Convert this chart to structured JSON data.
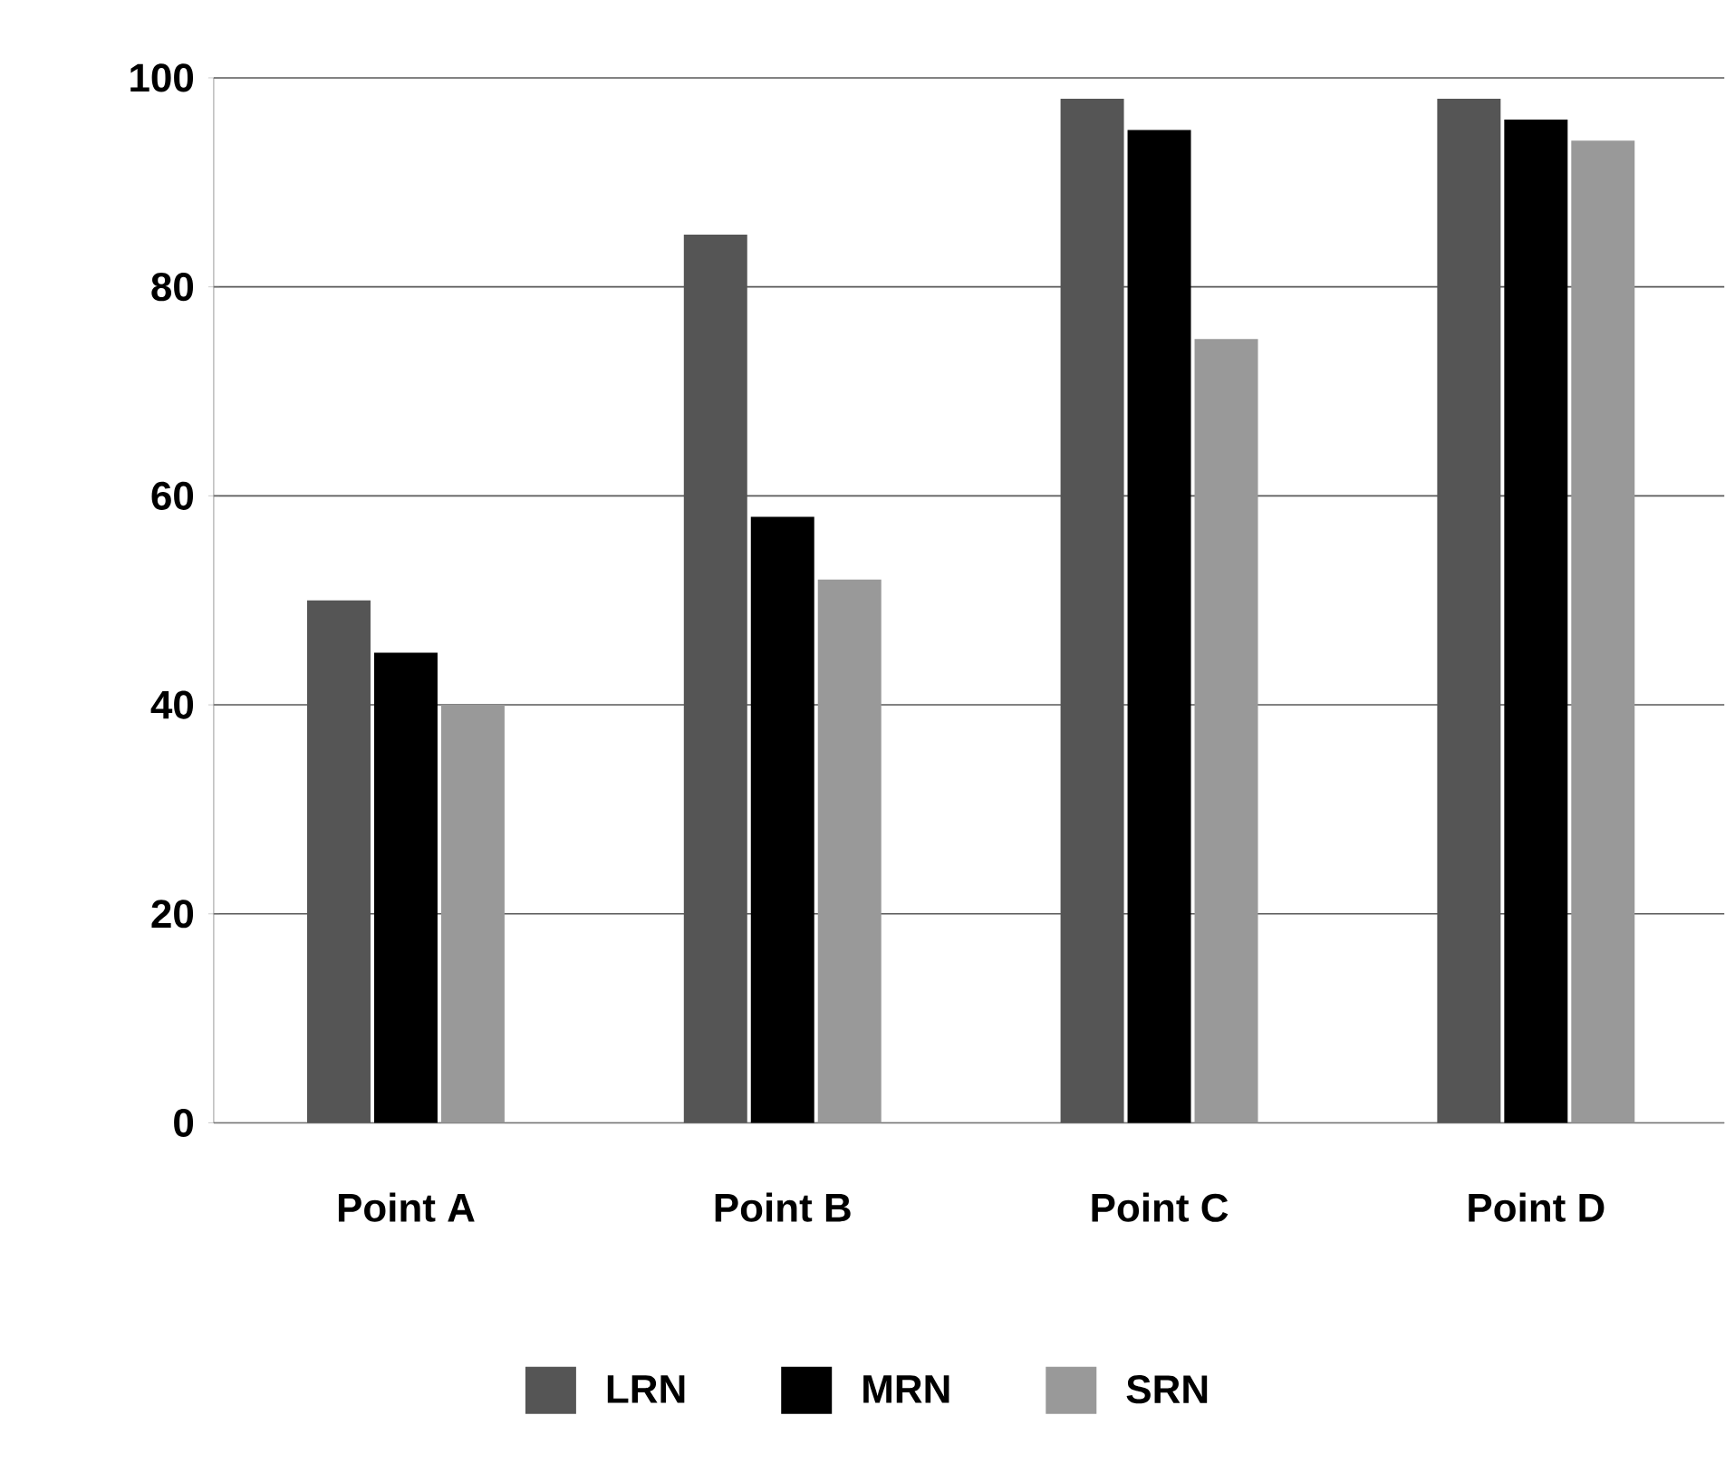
{
  "chart_data": {
    "type": "bar",
    "categories": [
      "Point A",
      "Point B",
      "Point C",
      "Point D"
    ],
    "series": [
      {
        "name": "LRN",
        "color": "#555555",
        "values": [
          50,
          85,
          98,
          98
        ]
      },
      {
        "name": "MRN",
        "color": "#000000",
        "values": [
          45,
          58,
          95,
          96
        ]
      },
      {
        "name": "SRN",
        "color": "#999999",
        "values": [
          40,
          52,
          75,
          94
        ]
      }
    ],
    "ylim": [
      0,
      100
    ],
    "yticks": [
      0,
      20,
      40,
      60,
      80,
      100
    ],
    "grid": "y",
    "legend": "bottom"
  }
}
